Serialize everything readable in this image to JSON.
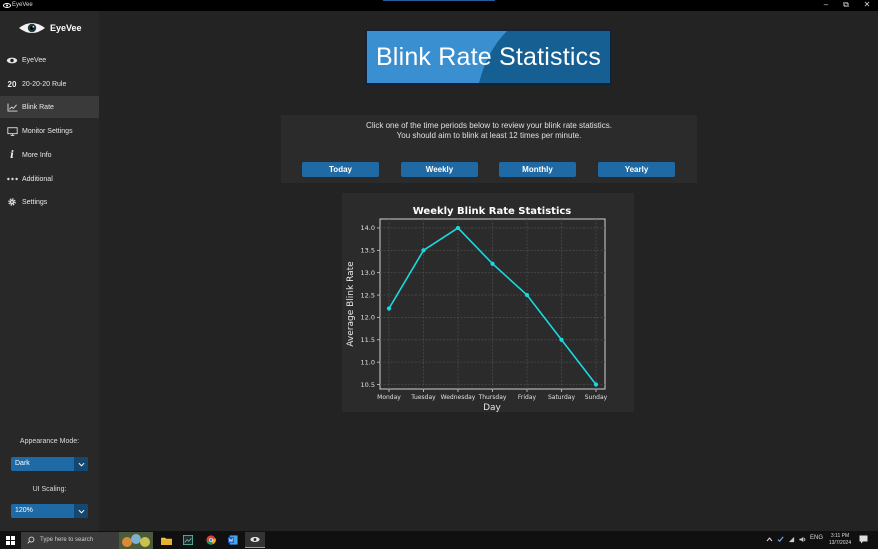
{
  "window": {
    "title": "EyeVee",
    "minimize": "–",
    "restore": "⧉",
    "close": "✕"
  },
  "sidebar": {
    "app_name": "EyeVee",
    "items": [
      {
        "label": "EyeVee",
        "icon": "eye-icon"
      },
      {
        "label": "20-20-20 Rule",
        "icon": "twenty-icon",
        "glyph": "20"
      },
      {
        "label": "Blink Rate",
        "icon": "chart-icon",
        "active": true
      },
      {
        "label": "Monitor Settings",
        "icon": "monitor-icon"
      },
      {
        "label": "More Info",
        "icon": "info-icon",
        "glyph": "i"
      },
      {
        "label": "Additional",
        "icon": "dots-icon"
      },
      {
        "label": "Settings",
        "icon": "gear-icon"
      }
    ],
    "appearance_label": "Appearance Mode:",
    "appearance_value": "Dark",
    "scaling_label": "UI Scaling:",
    "scaling_value": "120%"
  },
  "banner": {
    "title": "Blink Rate Statistics"
  },
  "period_panel": {
    "line1": "Click one of the time periods below to review your blink rate statistics.",
    "line2": "You should aim to blink at least 12 times per minute.",
    "buttons": [
      "Today",
      "Weekly",
      "Monthly",
      "Yearly"
    ]
  },
  "chart_data": {
    "type": "line",
    "title": "Weekly Blink Rate Statistics",
    "xlabel": "Day",
    "ylabel": "Average Blink Rate",
    "categories": [
      "Monday",
      "Tuesday",
      "Wednesday",
      "Thursday",
      "Friday",
      "Saturday",
      "Sunday"
    ],
    "values": [
      12.2,
      13.5,
      14.0,
      13.2,
      12.5,
      11.5,
      10.5
    ],
    "ylim": [
      10.4,
      14.2
    ],
    "yticks": [
      "10.5",
      "11.0",
      "11.5",
      "12.0",
      "12.5",
      "13.0",
      "13.5",
      "14.0"
    ],
    "grid": true,
    "line_color": "#1ad9e0"
  },
  "taskbar": {
    "search_placeholder": "Type here to search",
    "tray_lang": "ENG",
    "time": "3:11 PM",
    "date": "13/7/2024"
  },
  "colors": {
    "accent": "#1f6aa5",
    "sidebar_bg": "#282828",
    "main_bg": "#232323",
    "panel_bg": "#2b2b2b"
  }
}
